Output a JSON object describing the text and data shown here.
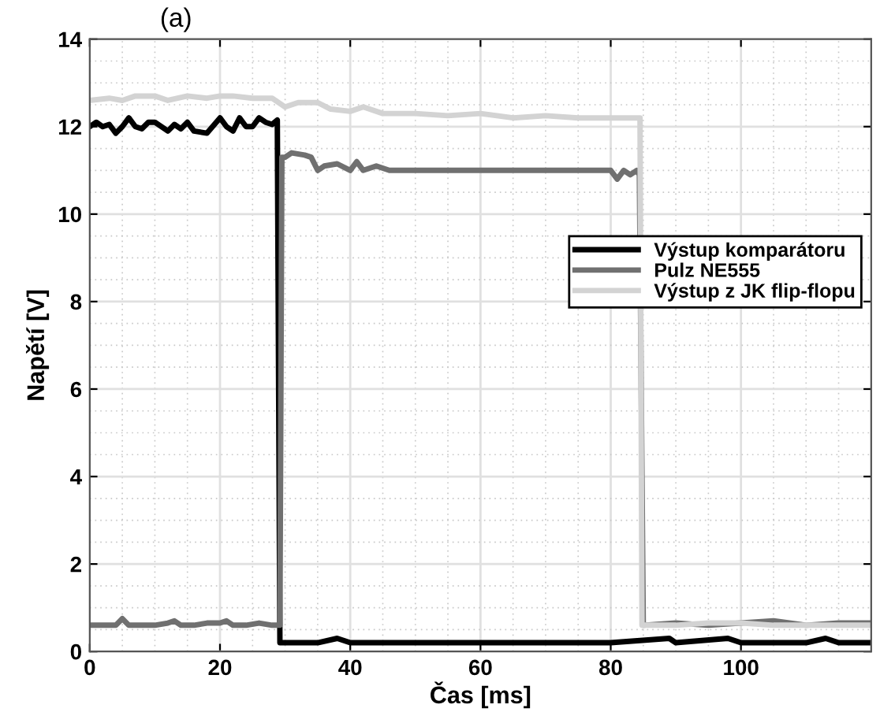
{
  "chart_data": {
    "type": "line",
    "title": "(a)",
    "xlabel": "Čas [ms]",
    "ylabel": "Napětí [V]",
    "xlim": [
      0,
      120
    ],
    "ylim": [
      0,
      14
    ],
    "xticks": [
      0,
      20,
      40,
      60,
      80,
      100
    ],
    "yticks": [
      0,
      2,
      4,
      6,
      8,
      10,
      12,
      14
    ],
    "grid": true,
    "legend": "right",
    "line_style": "solid",
    "marker": "none",
    "series": [
      {
        "name": "Výstup komparátoru",
        "color": "#000000",
        "x": [
          0,
          1,
          2,
          3,
          4,
          5,
          6,
          7,
          8,
          9,
          10,
          12,
          13,
          14,
          15,
          16,
          18,
          20,
          21,
          22,
          23,
          24,
          25,
          26,
          27,
          28,
          28.8,
          29.2,
          30,
          35,
          38,
          40,
          50,
          60,
          70,
          80,
          89,
          90,
          98,
          100,
          110,
          113,
          115,
          120
        ],
        "values": [
          12.0,
          12.1,
          12.0,
          12.05,
          11.85,
          12.0,
          12.2,
          12.0,
          11.95,
          12.1,
          12.1,
          11.9,
          12.05,
          11.95,
          12.1,
          11.9,
          11.85,
          12.2,
          12.0,
          11.9,
          12.2,
          12.0,
          12.0,
          12.2,
          12.1,
          12.05,
          12.15,
          0.2,
          0.2,
          0.2,
          0.3,
          0.2,
          0.2,
          0.2,
          0.2,
          0.2,
          0.3,
          0.2,
          0.3,
          0.2,
          0.2,
          0.3,
          0.2,
          0.2
        ]
      },
      {
        "name": "Pulz NE555",
        "color": "#707070",
        "x": [
          0,
          2,
          4,
          5,
          6,
          8,
          10,
          12,
          13,
          14,
          16,
          18,
          20,
          21,
          22,
          24,
          26,
          28,
          29.2,
          29.5,
          30,
          31,
          33,
          34,
          35,
          36,
          38,
          40,
          41,
          42,
          44,
          46,
          50,
          55,
          60,
          70,
          80,
          81,
          82,
          83,
          84,
          84.4,
          85,
          90,
          95,
          100,
          105,
          110,
          115,
          120
        ],
        "values": [
          0.6,
          0.6,
          0.6,
          0.75,
          0.6,
          0.6,
          0.6,
          0.65,
          0.7,
          0.6,
          0.6,
          0.65,
          0.65,
          0.7,
          0.6,
          0.6,
          0.65,
          0.6,
          0.6,
          11.3,
          11.3,
          11.4,
          11.35,
          11.3,
          11.0,
          11.1,
          11.15,
          11.0,
          11.2,
          11.0,
          11.1,
          11.0,
          11.0,
          11.0,
          11.0,
          11.0,
          11.0,
          10.8,
          11.0,
          10.9,
          11.0,
          10.9,
          0.6,
          0.65,
          0.6,
          0.65,
          0.7,
          0.6,
          0.65,
          0.65
        ]
      },
      {
        "name": "Výstup z JK flip-flopu",
        "color": "#d3d3d3",
        "x": [
          0,
          3,
          5,
          7,
          10,
          12,
          15,
          18,
          20,
          22,
          25,
          28,
          30,
          32,
          35,
          37,
          40,
          42,
          45,
          50,
          55,
          60,
          65,
          70,
          75,
          80,
          84.5,
          84.8,
          85,
          90,
          95,
          100,
          105,
          110,
          115,
          120
        ],
        "values": [
          12.6,
          12.65,
          12.6,
          12.7,
          12.7,
          12.6,
          12.7,
          12.65,
          12.7,
          12.7,
          12.65,
          12.65,
          12.45,
          12.55,
          12.55,
          12.4,
          12.35,
          12.45,
          12.3,
          12.3,
          12.25,
          12.3,
          12.2,
          12.25,
          12.2,
          12.2,
          12.2,
          0.6,
          0.6,
          0.6,
          0.65,
          0.65,
          0.6,
          0.6,
          0.6,
          0.6
        ]
      }
    ]
  }
}
